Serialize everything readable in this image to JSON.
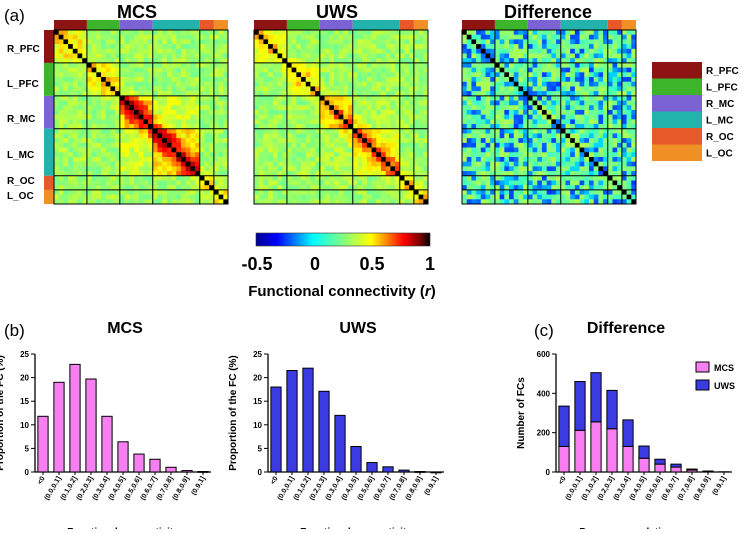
{
  "panel_labels": {
    "a": "(a)",
    "b": "(b)",
    "c": "(c)"
  },
  "region_colors": {
    "R_PFC": "#8e1414",
    "L_PFC": "#3db52a",
    "R_MC": "#7b63d6",
    "L_MC": "#23b3ad",
    "R_OC": "#e8592a",
    "L_OC": "#f08f24"
  },
  "heatmaps": {
    "row_labels": [
      "R_PFC",
      "L_PFC",
      "R_MC",
      "L_MC",
      "R_OC",
      "L_OC"
    ],
    "legend_labels": [
      "R_PFC",
      "L_PFC",
      "R_MC",
      "L_MC",
      "R_OC",
      "L_OC"
    ],
    "colorbar": {
      "title": "Functional connectivity (r)",
      "title_main": "Functional connectivity (",
      "title_var": "r",
      "title_end": ")",
      "ticks": [
        "-0.5",
        "0",
        "0.5",
        "1"
      ],
      "range": [
        -0.5,
        1
      ]
    }
  },
  "chart_data": [
    {
      "type": "heatmap",
      "title": "MCS",
      "value_range": [
        -0.5,
        1
      ],
      "region_sizes": [
        7,
        7,
        7,
        10,
        3,
        3
      ],
      "pattern": "positive connectivity, strongest along diagonal within motor cortex blocks"
    },
    {
      "type": "heatmap",
      "title": "UWS",
      "value_range": [
        -0.5,
        1
      ],
      "region_sizes": [
        7,
        7,
        7,
        10,
        3,
        3
      ],
      "pattern": "positive connectivity, weaker than MCS"
    },
    {
      "type": "heatmap",
      "title": "Difference",
      "value_range": [
        -0.5,
        1
      ],
      "region_sizes": [
        7,
        7,
        7,
        10,
        3,
        3
      ],
      "pattern": "mixed small differences"
    },
    {
      "type": "bar",
      "title": "MCS",
      "categories": [
        "<0",
        "(0.0,0.1]",
        "(0.1,0.2]",
        "(0.2,0.3]",
        "(0.3,0.4]",
        "(0.4,0.5]",
        "(0.5,0.6]",
        "(0.6,0.7]",
        "(0.7,0.8]",
        "(0.8,0.9]",
        "(0.9,1]"
      ],
      "values": [
        11.8,
        19,
        22.8,
        19.7,
        11.8,
        6.4,
        3.8,
        2.7,
        1,
        0.3,
        0.1
      ],
      "xlabel": "Functional connectivity",
      "ylabel": "Proportion of the FC (%)",
      "ylim": [
        0,
        25
      ],
      "yticks": [
        0,
        5,
        10,
        15,
        20,
        25
      ],
      "color": "#f77ff1"
    },
    {
      "type": "bar",
      "title": "UWS",
      "categories": [
        "<0",
        "(0.0,0.1]",
        "(0.1,0.2]",
        "(0.2,0.3]",
        "(0.3,0.4]",
        "(0.4,0.5]",
        "(0.5,0.6]",
        "(0.6,0.7]",
        "(0.7,0.8]",
        "(0.8,0.9]",
        "(0.9,1]"
      ],
      "values": [
        18,
        21.5,
        22,
        17.1,
        12,
        5.4,
        2,
        1.1,
        0.4,
        0.1,
        0
      ],
      "xlabel": "Functional connectivity",
      "ylabel": "Proportion of the FC (%)",
      "ylim": [
        0,
        25
      ],
      "yticks": [
        0,
        5,
        10,
        15,
        20,
        25
      ],
      "color": "#3b3be3"
    },
    {
      "type": "bar",
      "title": "Difference",
      "stacked": true,
      "categories": [
        "<0",
        "(0.0,0.1]",
        "(0.1,0.2]",
        "(0.2,0.3]",
        "(0.3,0.4]",
        "(0.4,0.5]",
        "(0.5,0.6]",
        "(0.6,0.7]",
        "(0.7,0.8]",
        "(0.8,0.9]",
        "(0.9,1]"
      ],
      "series": [
        {
          "name": "MCS",
          "color": "#f77ff1",
          "values": [
            130,
            212,
            255,
            220,
            130,
            70,
            40,
            25,
            10,
            3,
            1
          ]
        },
        {
          "name": "UWS",
          "color": "#3b3be3",
          "values": [
            205,
            248,
            250,
            195,
            135,
            62,
            25,
            15,
            5,
            2,
            0
          ]
        }
      ],
      "xlabel": "Pearson correlation ranges",
      "ylabel": "Number of FCs",
      "ylim": [
        0,
        600
      ],
      "yticks": [
        0,
        200,
        400,
        600
      ],
      "legend": "top-right"
    }
  ]
}
